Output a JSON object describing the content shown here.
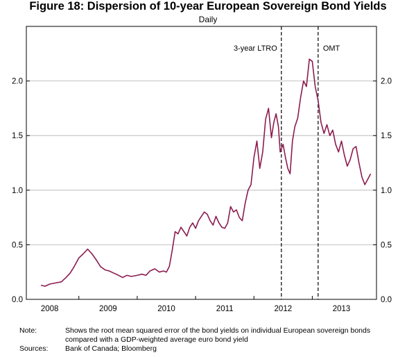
{
  "title": "Figure 18: Dispersion of 10-year European Sovereign Bond Yields",
  "subtitle": "Daily",
  "note_label": "Note:",
  "note_text": "Shows the root mean squared error of the bond yields on individual European sovereign bonds compared with a GDP-weighted average euro bond yield",
  "sources_label": "Sources:",
  "sources_text": "Bank of Canada; Bloomberg",
  "colors": {
    "series": "#8a1b4f",
    "grid": "#b0b0b0",
    "axis": "#000000"
  },
  "chart_data": {
    "type": "line",
    "title": "Figure 18: Dispersion of 10-year European Sovereign Bond Yields",
    "subtitle": "Daily",
    "xlabel": "",
    "ylabel": "",
    "xlim": [
      2007.6,
      2013.6
    ],
    "ylim": [
      0.0,
      2.5
    ],
    "grid": "horizontal",
    "yticks": [
      "0.0",
      "0.5",
      "1.0",
      "1.5",
      "2.0"
    ],
    "xticks": [
      "2008",
      "2009",
      "2010",
      "2011",
      "2012",
      "2013"
    ],
    "xtick_positions": [
      2008.0,
      2009.0,
      2010.0,
      2011.0,
      2012.0,
      2013.0
    ],
    "year_boundaries": [
      2008.5,
      2009.5,
      2010.5,
      2011.5,
      2012.5
    ],
    "annotations": [
      {
        "label": "3-year LTRO",
        "x": 2011.97,
        "style": "dashed-vertical",
        "label_side": "left"
      },
      {
        "label": "OMT",
        "x": 2012.6,
        "style": "dashed-vertical",
        "label_side": "right"
      }
    ],
    "series": [
      {
        "name": "Dispersion",
        "x": [
          2007.85,
          2007.92,
          2008.0,
          2008.1,
          2008.2,
          2008.28,
          2008.35,
          2008.42,
          2008.5,
          2008.58,
          2008.65,
          2008.72,
          2008.8,
          2008.87,
          2008.95,
          2009.02,
          2009.1,
          2009.18,
          2009.25,
          2009.32,
          2009.4,
          2009.5,
          2009.58,
          2009.65,
          2009.72,
          2009.8,
          2009.88,
          2009.95,
          2010.0,
          2010.05,
          2010.1,
          2010.15,
          2010.2,
          2010.25,
          2010.3,
          2010.35,
          2010.4,
          2010.45,
          2010.5,
          2010.55,
          2010.6,
          2010.65,
          2010.7,
          2010.75,
          2010.8,
          2010.85,
          2010.9,
          2010.95,
          2011.0,
          2011.05,
          2011.1,
          2011.15,
          2011.2,
          2011.25,
          2011.3,
          2011.35,
          2011.4,
          2011.45,
          2011.5,
          2011.55,
          2011.6,
          2011.65,
          2011.7,
          2011.75,
          2011.8,
          2011.84,
          2011.88,
          2011.92,
          2011.95,
          2012.0,
          2012.04,
          2012.08,
          2012.12,
          2012.16,
          2012.2,
          2012.25,
          2012.3,
          2012.35,
          2012.4,
          2012.45,
          2012.5,
          2012.55,
          2012.6,
          2012.65,
          2012.7,
          2012.75,
          2012.8,
          2012.85,
          2012.9,
          2012.95,
          2013.0,
          2013.05,
          2013.1,
          2013.15,
          2013.2,
          2013.25,
          2013.3,
          2013.35,
          2013.4,
          2013.45,
          2013.5
        ],
        "values": [
          0.13,
          0.12,
          0.14,
          0.15,
          0.16,
          0.2,
          0.24,
          0.3,
          0.38,
          0.42,
          0.46,
          0.42,
          0.36,
          0.3,
          0.27,
          0.26,
          0.24,
          0.22,
          0.2,
          0.22,
          0.21,
          0.22,
          0.23,
          0.22,
          0.26,
          0.28,
          0.25,
          0.26,
          0.25,
          0.3,
          0.45,
          0.62,
          0.6,
          0.66,
          0.62,
          0.58,
          0.66,
          0.7,
          0.65,
          0.72,
          0.76,
          0.8,
          0.78,
          0.72,
          0.68,
          0.76,
          0.7,
          0.66,
          0.65,
          0.7,
          0.85,
          0.8,
          0.82,
          0.75,
          0.72,
          0.88,
          1.0,
          1.05,
          1.3,
          1.45,
          1.2,
          1.35,
          1.65,
          1.75,
          1.48,
          1.62,
          1.7,
          1.58,
          1.35,
          1.42,
          1.3,
          1.2,
          1.15,
          1.45,
          1.58,
          1.66,
          1.85,
          2.0,
          1.95,
          2.2,
          2.18,
          1.95,
          1.82,
          1.62,
          1.52,
          1.6,
          1.5,
          1.55,
          1.42,
          1.35,
          1.45,
          1.32,
          1.22,
          1.28,
          1.38,
          1.4,
          1.25,
          1.12,
          1.05,
          1.1,
          1.15
        ]
      }
    ]
  }
}
